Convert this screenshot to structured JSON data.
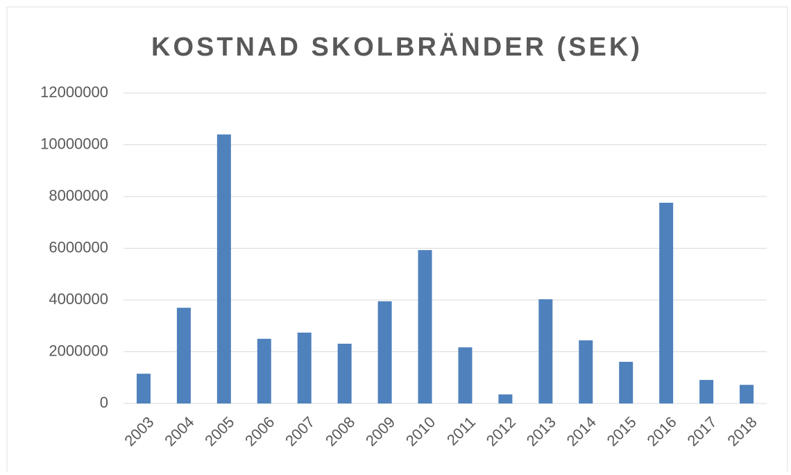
{
  "chart_data": {
    "type": "bar",
    "title": "KOSTNAD SKOLBRÄNDER (SEK)",
    "categories": [
      "2003",
      "2004",
      "2005",
      "2006",
      "2007",
      "2008",
      "2009",
      "2010",
      "2011",
      "2012",
      "2013",
      "2014",
      "2015",
      "2016",
      "2017",
      "2018"
    ],
    "values": [
      1150000,
      3700000,
      10400000,
      2500000,
      2740000,
      2310000,
      3950000,
      5930000,
      2170000,
      350000,
      4030000,
      2440000,
      1610000,
      7760000,
      910000,
      720000
    ],
    "color": "#4f81bd",
    "ylim": [
      0,
      12000000
    ],
    "yticks": [
      0,
      2000000,
      4000000,
      6000000,
      8000000,
      10000000,
      12000000
    ],
    "grid": true
  }
}
